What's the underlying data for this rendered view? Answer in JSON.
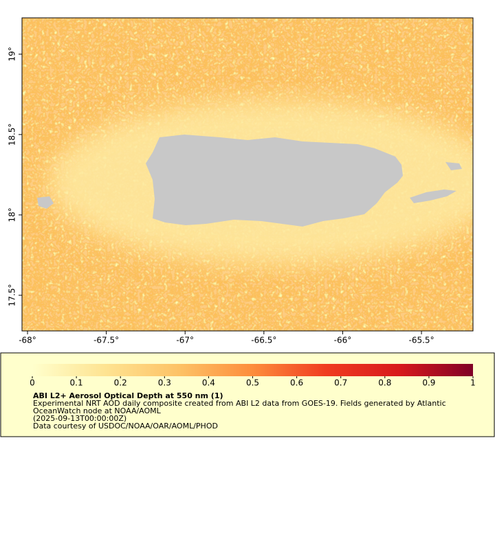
{
  "chart_data": {
    "type": "map",
    "xlim": [
      -68.035,
      -65.173
    ],
    "ylim": [
      17.278,
      19.226
    ],
    "xticks": [
      {
        "value": -68,
        "label": "-68°"
      },
      {
        "value": -67.5,
        "label": "-67.5°"
      },
      {
        "value": -67,
        "label": "-67°"
      },
      {
        "value": -66.5,
        "label": "-66.5°"
      },
      {
        "value": -66,
        "label": "-66°"
      },
      {
        "value": -65.5,
        "label": "-65.5°"
      }
    ],
    "yticks": [
      {
        "value": 17.5,
        "label": "17.5°"
      },
      {
        "value": 18,
        "label": "18°"
      },
      {
        "value": 18.5,
        "label": "18.5°"
      },
      {
        "value": 19,
        "label": "19°"
      }
    ],
    "colorbar": {
      "lim": [
        0,
        1
      ],
      "ticks": [
        0,
        0.1,
        0.2,
        0.3,
        0.4,
        0.5,
        0.6,
        0.7,
        0.8,
        0.9,
        1
      ],
      "colors": [
        "#ffffcc",
        "#fee391",
        "#fdc266",
        "#fd8d3c",
        "#f03b20",
        "#d7191c",
        "#800026"
      ]
    },
    "title": "ABI L2+ Aerosol Optical Depth at 550 nm (1)",
    "description": [
      "Experimental NRT AOD daily composite created from ABI L2 data from GOES-19. Fields generated by Atlantic",
      "OceanWatch node at NOAA/AOML",
      "(2025-09-13T00:00:00Z)",
      "Data courtesy of USDOC/NOAA/OAR/AOML/PHOD"
    ]
  }
}
